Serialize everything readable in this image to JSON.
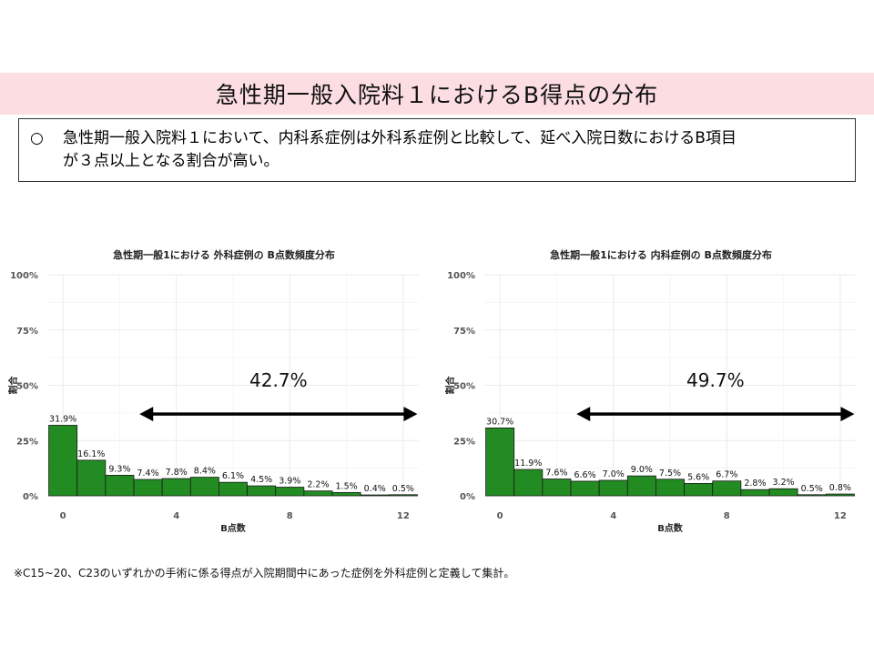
{
  "slide": {
    "title": "急性期一般入院料１におけるB得点の分布",
    "summary_marker": "○",
    "summary_line1": "急性期一般入院料１において、内科系症例は外科系症例と比較して、延べ入院日数におけるB項目",
    "summary_line2": "が３点以上となる割合が高い。",
    "footnote": "※C15~20、C23のいずれかの手術に係る得点が入院期間中にあった症例を外科症例と定義して集計。"
  },
  "colors": {
    "bar_fill": "#228b22",
    "bar_stroke": "#1a1a1a",
    "title_band": "#fbdde2",
    "grid": "#ebebeb"
  },
  "chart_data": [
    {
      "type": "bar",
      "title": "急性期一般1における 外科症例の B点数頻度分布",
      "xlabel": "B点数",
      "ylabel": "割合",
      "x": [
        0,
        1,
        2,
        3,
        4,
        5,
        6,
        7,
        8,
        9,
        10,
        11,
        12
      ],
      "values": [
        31.9,
        16.1,
        9.3,
        7.4,
        7.8,
        8.4,
        6.1,
        4.5,
        3.9,
        2.2,
        1.5,
        0.4,
        0.5
      ],
      "value_labels": [
        "31.9%",
        "16.1%",
        "9.3%",
        "7.4%",
        "7.8%",
        "8.4%",
        "6.1%",
        "4.5%",
        "3.9%",
        "2.2%",
        "1.5%",
        "0.4%",
        "0.5%"
      ],
      "x_ticks": [
        0,
        4,
        8,
        12
      ],
      "x_tick_labels": [
        "0",
        "4",
        "8",
        "12"
      ],
      "y_ticks": [
        0,
        25,
        50,
        75,
        100
      ],
      "y_tick_labels": [
        "0%",
        "25%",
        "50%",
        "75%",
        "100%"
      ],
      "ylim": [
        0,
        100
      ],
      "xlim": [
        -0.55,
        12.55
      ],
      "annotation": {
        "label": "42.7%",
        "x_from": 2.7,
        "x_to": 12.5,
        "y": 37
      },
      "grid": true
    },
    {
      "type": "bar",
      "title": "急性期一般1における 内科症例の B点数頻度分布",
      "xlabel": "B点数",
      "ylabel": "割合",
      "x": [
        0,
        1,
        2,
        3,
        4,
        5,
        6,
        7,
        8,
        9,
        10,
        11,
        12
      ],
      "values": [
        30.7,
        11.9,
        7.6,
        6.6,
        7.0,
        9.0,
        7.5,
        5.6,
        6.7,
        2.8,
        3.2,
        0.5,
        0.8
      ],
      "value_labels": [
        "30.7%",
        "11.9%",
        "7.6%",
        "6.6%",
        "7.0%",
        "9.0%",
        "7.5%",
        "5.6%",
        "6.7%",
        "2.8%",
        "3.2%",
        "0.5%",
        "0.8%"
      ],
      "x_ticks": [
        0,
        4,
        8,
        12
      ],
      "x_tick_labels": [
        "0",
        "4",
        "8",
        "12"
      ],
      "y_ticks": [
        0,
        25,
        50,
        75,
        100
      ],
      "y_tick_labels": [
        "0%",
        "25%",
        "50%",
        "75%",
        "100%"
      ],
      "ylim": [
        0,
        100
      ],
      "xlim": [
        -0.55,
        12.55
      ],
      "annotation": {
        "label": "49.7%",
        "x_from": 2.7,
        "x_to": 12.5,
        "y": 37
      },
      "grid": true
    }
  ]
}
